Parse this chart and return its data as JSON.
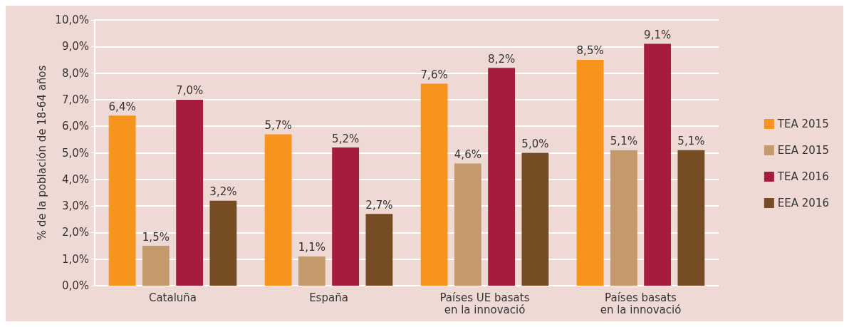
{
  "chart_data": {
    "type": "bar",
    "ylabel": "% de la población de 18-64 años",
    "categories": [
      "Cataluña",
      "España",
      "Países UE basats\nen la innovació",
      "Países basats\nen la innovació"
    ],
    "series": [
      {
        "name": "TEA 2015",
        "color": "#f7941d",
        "values": [
          6.4,
          5.7,
          7.6,
          8.5
        ],
        "value_labels": [
          "6,4%",
          "5,7%",
          "7,6%",
          "8,5%"
        ]
      },
      {
        "name": "EEA 2015",
        "color": "#c49a6c",
        "values": [
          1.5,
          1.1,
          4.6,
          5.1
        ],
        "value_labels": [
          "1,5%",
          "1,1%",
          "4,6%",
          "5,1%"
        ]
      },
      {
        "name": "TEA 2016",
        "color": "#a51c3c",
        "values": [
          7.0,
          5.2,
          8.2,
          9.1
        ],
        "value_labels": [
          "7,0%",
          "5,2%",
          "8,2%",
          "9,1%"
        ]
      },
      {
        "name": "EEA 2016",
        "color": "#754c24",
        "values": [
          3.2,
          2.7,
          5.0,
          5.1
        ],
        "value_labels": [
          "3,2%",
          "2,7%",
          "5,0%",
          "5,1%"
        ]
      }
    ],
    "ylim": [
      0,
      10
    ],
    "yticks": [
      {
        "value": 0,
        "label": "0,0%"
      },
      {
        "value": 1,
        "label": "1,0%"
      },
      {
        "value": 2,
        "label": "2,0%"
      },
      {
        "value": 3,
        "label": "3,0%"
      },
      {
        "value": 4,
        "label": "4,0%"
      },
      {
        "value": 5,
        "label": "5,0%"
      },
      {
        "value": 6,
        "label": "6,0%"
      },
      {
        "value": 7,
        "label": "7,0%"
      },
      {
        "value": 8,
        "label": "8,0%"
      },
      {
        "value": 9,
        "label": "9,0%"
      },
      {
        "value": 10,
        "label": "10,0%"
      }
    ],
    "grid": "y",
    "legend": "right"
  }
}
